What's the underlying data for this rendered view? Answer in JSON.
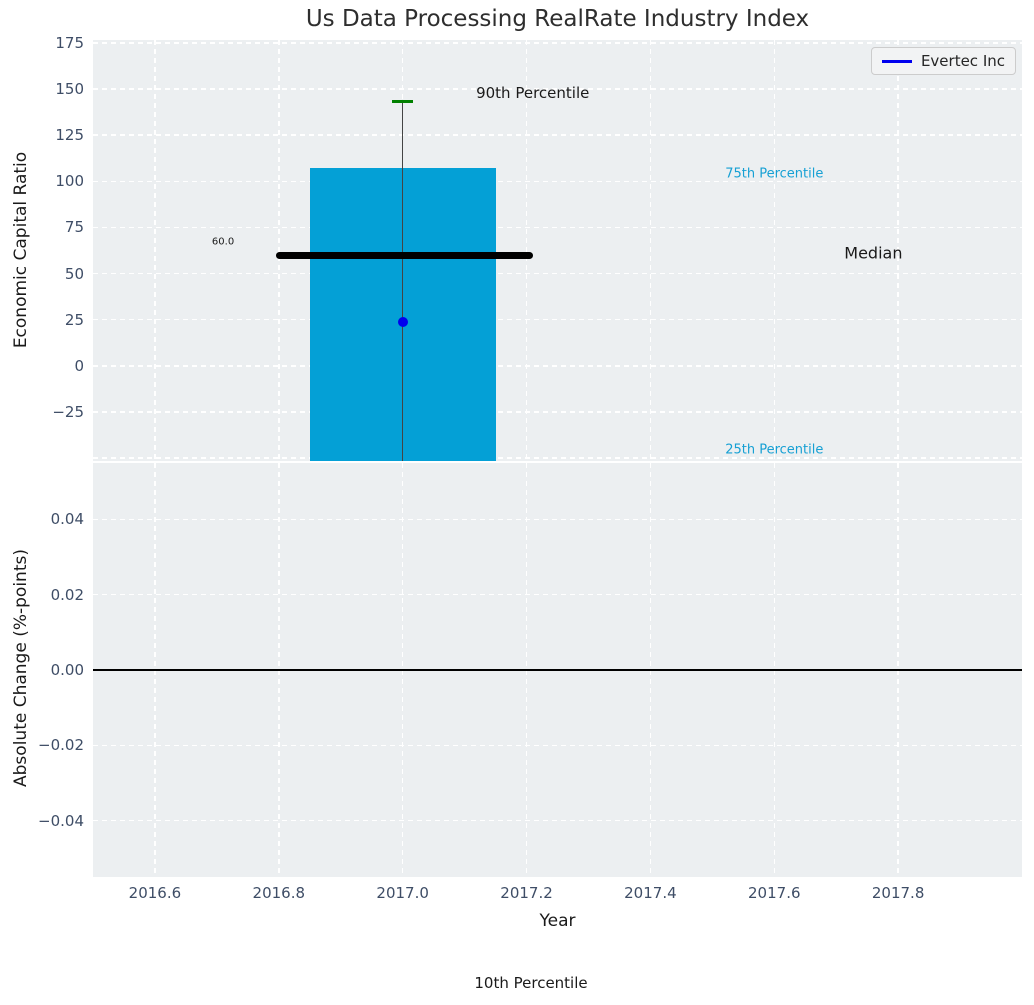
{
  "figure": {
    "title": "Us Data Processing RealRate Industry Index",
    "footer_annotation": "10th Percentile"
  },
  "legend": {
    "label": "Evertec Inc"
  },
  "colors": {
    "plot_bg": "#eceff1",
    "grid": "#ffffff",
    "bar": "#04a0d6",
    "whisker": "#444444",
    "p90_cap": "#008000",
    "median_line": "#000000",
    "company_dot": "#0000ee",
    "legend_line": "#0000ee",
    "zero_line": "#000000",
    "tick_label": "#3e4d66",
    "cyan_text": "#16a0d4",
    "dark_text": "#1a1a1a"
  },
  "chart_data": [
    {
      "type": "box-percentile",
      "title": "Us Data Processing RealRate Industry Index",
      "ylabel": "Economic Capital Ratio",
      "xlim": [
        2016.5,
        2018.0
      ],
      "ylim": [
        -51.5,
        176.5
      ],
      "grid": true,
      "legend_position": "upper right",
      "ytick_values": [
        175,
        150,
        125,
        100,
        75,
        50,
        25,
        0,
        -25
      ],
      "ytick_labels": [
        "175",
        "150",
        "125",
        "100",
        "75",
        "50",
        "25",
        "0",
        "−25"
      ],
      "ygrid_extra": [
        -50
      ],
      "box": {
        "x_center": 2017.0,
        "x_left": 2016.85,
        "x_right": 2017.15,
        "p90": 143,
        "p75": 107,
        "median": 60.0,
        "p25_clipped_below_axis": true,
        "p10_clipped_below_axis": true,
        "median_x_left": 2016.795,
        "median_x_right": 2017.21
      },
      "company_marker": {
        "name": "Evertec Inc",
        "x": 2017.0,
        "y": 24
      },
      "annotations": [
        {
          "text": "90th Percentile",
          "x": 2017.21,
          "y": 148,
          "style": "dark",
          "size": 15
        },
        {
          "text": "75th Percentile",
          "x": 2017.6,
          "y": 104,
          "style": "cyan",
          "size": 13
        },
        {
          "text": "Median",
          "x": 2017.76,
          "y": 61,
          "style": "dark",
          "size": 16
        },
        {
          "text": "25th Percentile",
          "x": 2017.6,
          "y": -45.5,
          "style": "cyan",
          "size": 13
        },
        {
          "text": "60.0",
          "x": 2016.71,
          "y": 67,
          "style": "dark",
          "size": 10
        }
      ]
    },
    {
      "type": "line",
      "ylabel": "Absolute Change (%-points)",
      "xlabel": "Year",
      "xlim": [
        2016.5,
        2018.0
      ],
      "ylim": [
        -0.055,
        0.055
      ],
      "grid": true,
      "ytick_values": [
        0.04,
        0.02,
        0,
        -0.02,
        -0.04
      ],
      "ytick_labels": [
        "0.04",
        "0.02",
        "0.00",
        "−0.02",
        "−0.04"
      ],
      "xtick_values": [
        2016.6,
        2016.8,
        2017.0,
        2017.2,
        2017.4,
        2017.6,
        2017.8
      ],
      "xtick_labels": [
        "2016.6",
        "2016.8",
        "2017.0",
        "2017.2",
        "2017.4",
        "2017.6",
        "2017.8"
      ],
      "zero_line": 0.0,
      "series": [
        {
          "name": "Evertec Inc",
          "x": [],
          "y": []
        }
      ]
    }
  ]
}
